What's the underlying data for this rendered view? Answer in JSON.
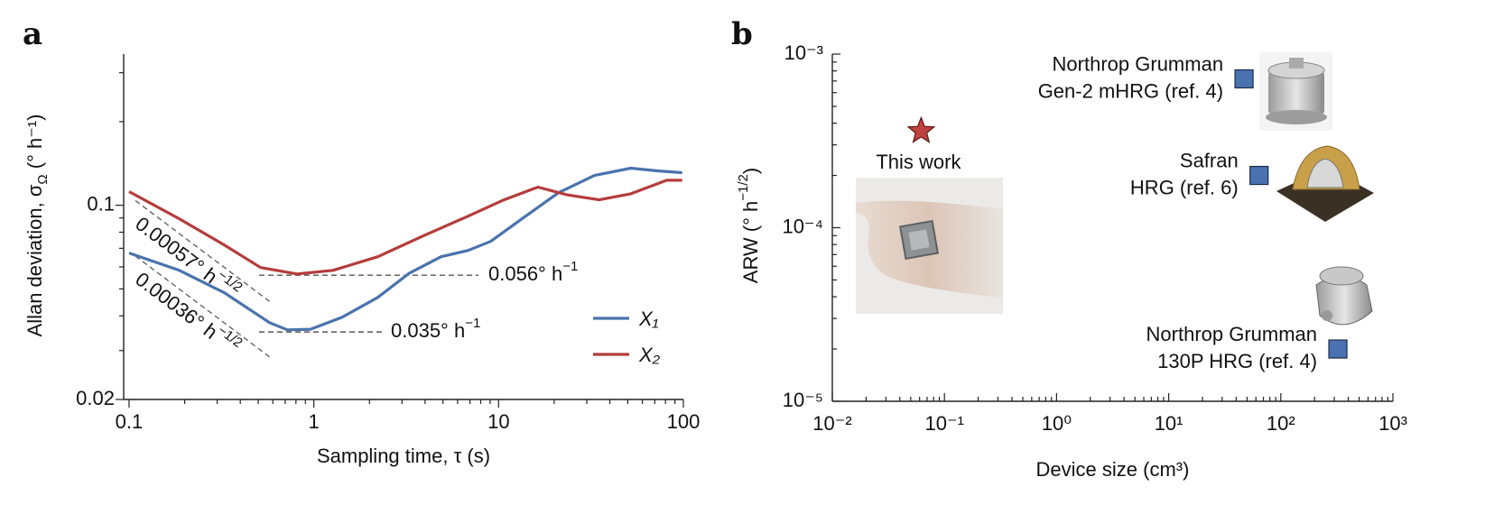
{
  "chart_data": [
    {
      "type": "line",
      "panel_label": "a",
      "xlabel": "Sampling time, τ (s)",
      "ylabel": {
        "text": "Allan deviation, σ",
        "sub": "Ω",
        "end": " (° h⁻¹)"
      },
      "xscale": "log",
      "yscale": "log",
      "xlim": [
        0.0935,
        100
      ],
      "ylim": [
        0.02,
        0.35
      ],
      "xticks": [
        0.1,
        1,
        10,
        100
      ],
      "yticks": [
        0.02,
        0.1
      ],
      "xminorticks": [
        0.2,
        0.3,
        0.4,
        0.5,
        0.6,
        0.7,
        0.8,
        0.9,
        2,
        3,
        4,
        5,
        6,
        7,
        8,
        9,
        20,
        30,
        40,
        50,
        60,
        70,
        80,
        90
      ],
      "yminorticks": [
        0.03,
        0.04,
        0.05,
        0.06,
        0.07,
        0.08,
        0.09,
        0.2,
        0.3
      ],
      "legend": "lower right",
      "series": [
        {
          "name": "X₁",
          "color": "#4a73ad",
          "x": [
            0.1,
            0.187,
            0.328,
            0.576,
            0.72,
            0.96,
            1.42,
            2.22,
            3.29,
            4.88,
            6.84,
            9.06,
            13.4,
            21.1,
            33,
            51.9,
            72.6,
            98.6
          ],
          "values": [
            0.0673,
            0.0583,
            0.0484,
            0.0378,
            0.0356,
            0.0358,
            0.0395,
            0.0466,
            0.057,
            0.0653,
            0.0688,
            0.0741,
            0.0894,
            0.111,
            0.128,
            0.136,
            0.133,
            0.131
          ]
        },
        {
          "name": "X₂",
          "color": "#b53c3c",
          "x": [
            0.1,
            0.187,
            0.328,
            0.515,
            0.81,
            1.27,
            2.22,
            3.9,
            6.84,
            10.7,
            16.3,
            23.5,
            35,
            51.9,
            81.3,
            98.6
          ],
          "values": [
            0.112,
            0.0894,
            0.0719,
            0.0597,
            0.0566,
            0.0583,
            0.0653,
            0.0775,
            0.0914,
            0.1046,
            0.1162,
            0.109,
            0.1046,
            0.11,
            0.123,
            0.123
          ]
        }
      ],
      "reference_levels": [
        {
          "value": 0.056,
          "text": "0.056° h",
          "sup": "−1"
        },
        {
          "value": 0.035,
          "text": "0.035° h",
          "sup": "−1"
        }
      ],
      "arw_slopes": [
        {
          "value": 0.00057,
          "text": "0.00057° h",
          "sup": "−1/2"
        },
        {
          "value": 0.00036,
          "text": "0.00036° h",
          "sup": "−1/2"
        }
      ]
    },
    {
      "type": "scatter",
      "panel_label": "b",
      "xlabel": "Device size (cm³)",
      "ylabel": {
        "text": "ARW (° h",
        "sup": "−1/2",
        "end": ")"
      },
      "xscale": "log",
      "yscale": "log",
      "xlim": [
        0.01,
        1000
      ],
      "ylim": [
        1e-05,
        0.001
      ],
      "xticks": [
        {
          "value": 0.01,
          "label": "10⁻²"
        },
        {
          "value": 0.1,
          "label": "10⁻¹"
        },
        {
          "value": 1,
          "label": "10⁰"
        },
        {
          "value": 10,
          "label": "10¹"
        },
        {
          "value": 100,
          "label": "10²"
        },
        {
          "value": 1000,
          "label": "10³"
        }
      ],
      "yticks": [
        {
          "value": 1e-05,
          "label": "10⁻⁵"
        },
        {
          "value": 0.0001,
          "label": "10⁻⁴"
        },
        {
          "value": 0.001,
          "label": "10⁻³"
        }
      ],
      "xminorticks": [
        0.02,
        0.03,
        0.04,
        0.05,
        0.06,
        0.07,
        0.08,
        0.09,
        0.2,
        0.3,
        0.4,
        0.5,
        0.6,
        0.7,
        0.8,
        0.9,
        2,
        3,
        4,
        5,
        6,
        7,
        8,
        9,
        20,
        30,
        40,
        50,
        60,
        70,
        80,
        90,
        200,
        300,
        400,
        500,
        600,
        700,
        800,
        900
      ],
      "yminorticks": [
        2e-05,
        3e-05,
        4e-05,
        5e-05,
        6e-05,
        7e-05,
        8e-05,
        9e-05,
        0.0002,
        0.0003,
        0.0004,
        0.0005,
        0.0006,
        0.0007,
        0.0008,
        0.0009
      ],
      "points": [
        {
          "label": [
            "This work"
          ],
          "x": 0.062,
          "y": 0.00036,
          "marker": "star",
          "color": "#c0423f",
          "label_position": "below"
        },
        {
          "label": [
            "Northrop Grumman",
            "Gen-2 mHRG (ref. 4)"
          ],
          "x": 47,
          "y": 0.00072,
          "marker": "square",
          "color": "#4a72b0",
          "label_position": "left"
        },
        {
          "label": [
            "Safran",
            "HRG (ref. 6)"
          ],
          "x": 64,
          "y": 0.0002,
          "marker": "square",
          "color": "#4a72b0",
          "label_position": "left"
        },
        {
          "label": [
            "Northrop Grumman",
            "130P HRG (ref. 4)"
          ],
          "x": 323,
          "y": 2e-05,
          "marker": "square",
          "color": "#4a72b0",
          "label_position": "left"
        }
      ]
    }
  ]
}
